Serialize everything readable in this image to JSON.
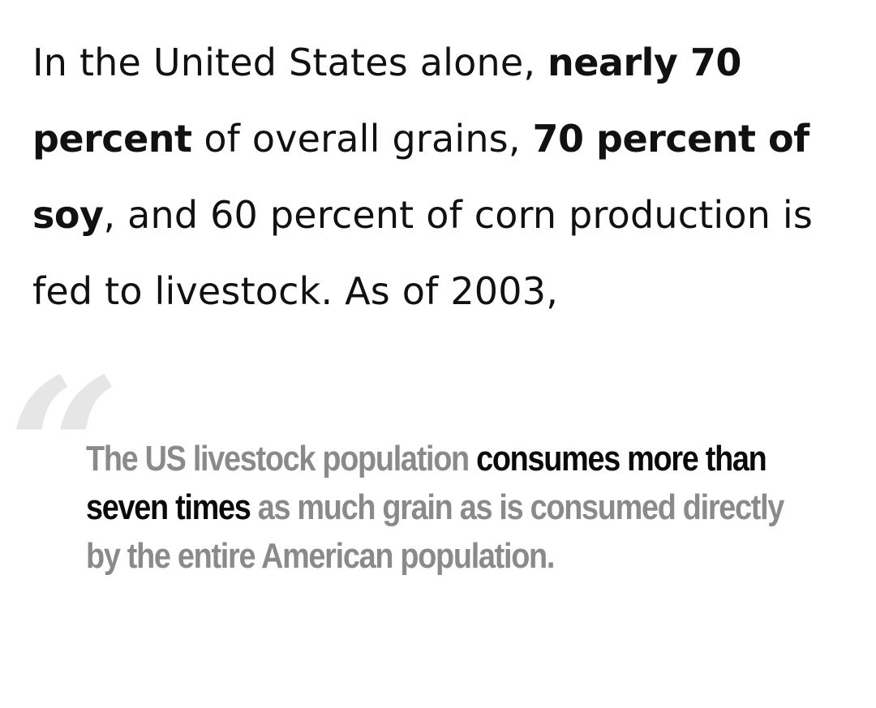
{
  "article": {
    "p1": "In the United States alone, ",
    "p1_bold": "nearly 70 percent",
    "p2": " of overall grains, ",
    "p2_bold": "70 percent of soy",
    "p3": ", and 60 percent of corn production is fed to livestock. As of 2003,"
  },
  "pull_quote": {
    "mark": "“",
    "lead": "The US livestock population ",
    "emphasis": "consumes more than seven times",
    "tail": " as much grain as is consumed directly by the entire American population."
  },
  "colors": {
    "body_text": "#111111",
    "quote_muted": "#8a8a8a",
    "quote_emphasis": "#0a0a0a",
    "quote_mark": "#e6e6e6",
    "background": "#ffffff"
  }
}
